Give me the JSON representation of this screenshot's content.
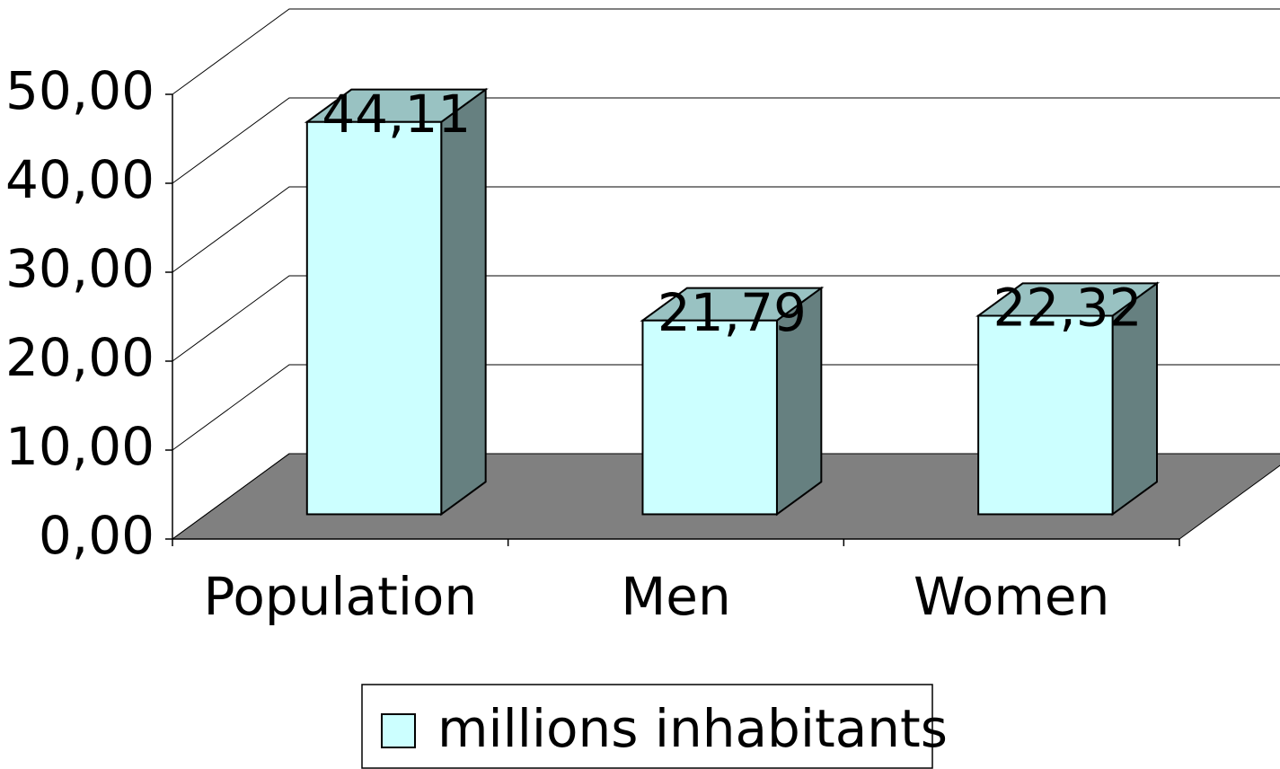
{
  "chart_data": {
    "type": "bar3d",
    "categories": [
      "Population",
      "Men",
      "Women"
    ],
    "series": [
      {
        "name": "millions inhabitants",
        "color": "#ccffff",
        "values": [
          44.11,
          21.79,
          22.32
        ],
        "value_labels": [
          "44,11",
          "21,79",
          "22,32"
        ]
      }
    ],
    "ylim": [
      0,
      50
    ],
    "yticks": [
      {
        "value": 0,
        "label": "0,00"
      },
      {
        "value": 10,
        "label": "10,00"
      },
      {
        "value": 20,
        "label": "20,00"
      },
      {
        "value": 30,
        "label": "30,00"
      },
      {
        "value": 40,
        "label": "40,00"
      },
      {
        "value": 50,
        "label": "50,00"
      }
    ],
    "grid": true,
    "legend": "bottom"
  }
}
